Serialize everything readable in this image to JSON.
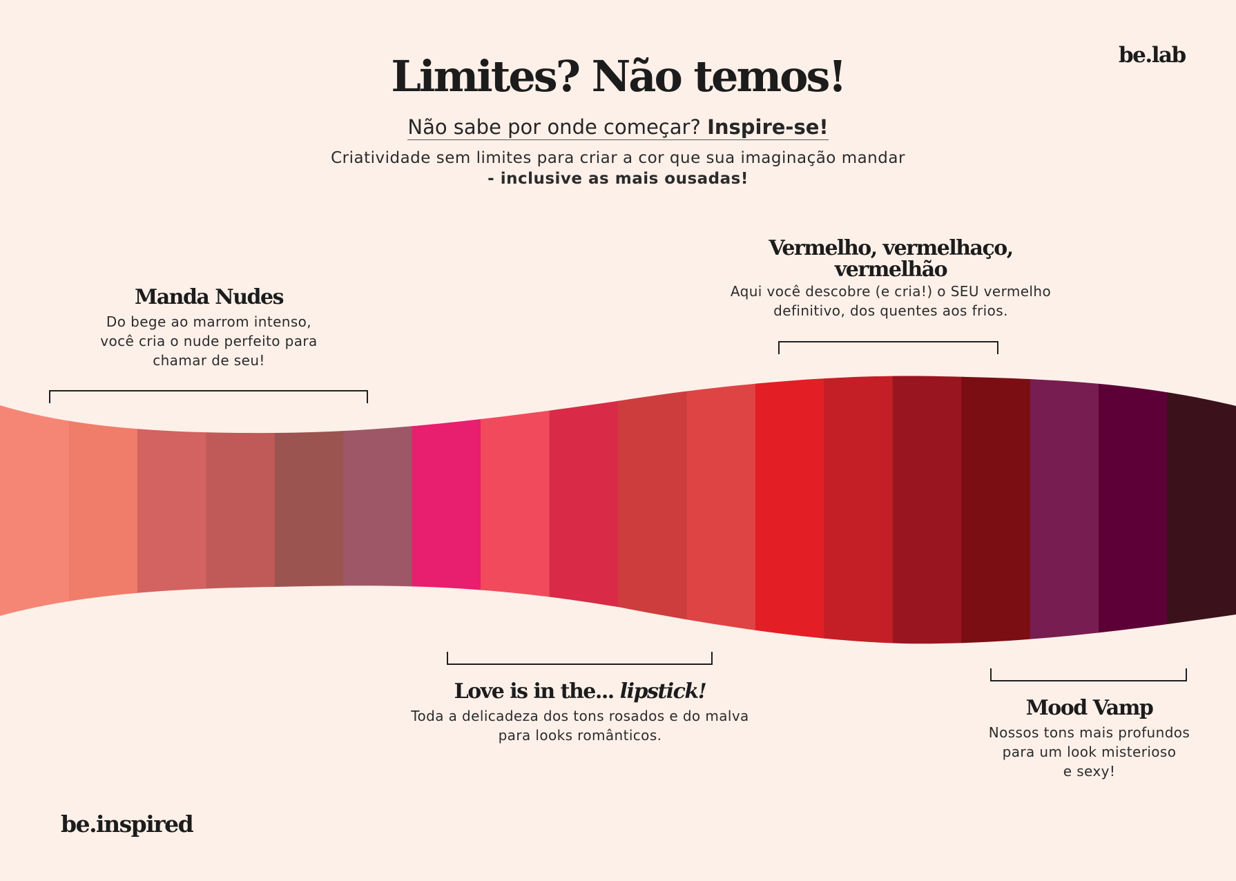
{
  "header": {
    "title": "Limites? Não temos!",
    "subtitle_plain": "Não sabe por onde começar?",
    "subtitle_bold": "Inspire-se!",
    "intro_line1": "Criatividade sem limites para criar a cor que sua imaginação mandar",
    "intro_line2": "- inclusive as mais ousadas!"
  },
  "brands": {
    "top_right": "be.lab",
    "bottom_left": "be.inspired"
  },
  "categories": [
    {
      "title": "Manda Nudes",
      "description_lines": [
        "Do bege ao marrom intenso,",
        "você cria o nude perfeito para",
        "chamar de seu!"
      ]
    },
    {
      "title_lines": [
        "Vermelho, vermelhaço,",
        "vermelhão"
      ],
      "description_lines": [
        "Aqui você descobre (e cria!) o SEU vermelho",
        "definitivo, dos quentes aos frios."
      ]
    },
    {
      "title_plain": "Love is in the...",
      "title_italic": "lipstick!",
      "description_lines": [
        "Toda a delicadeza dos tons rosados e do malva",
        "para looks românticos."
      ]
    },
    {
      "title": "Mood Vamp",
      "description_lines": [
        "Nossos tons mais profundos",
        "para um look misterioso",
        "e sexy!"
      ]
    }
  ],
  "palette": {
    "swatches": [
      "#f58676",
      "#f07c6a",
      "#d36360",
      "#bf5a58",
      "#9c5450",
      "#9e5766",
      "#e81e6e",
      "#f14a5c",
      "#d92a48",
      "#cd3d3e",
      "#de4444",
      "#e31e25",
      "#c41f27",
      "#991620",
      "#7a0e12",
      "#771d51",
      "#5d0037",
      "#3b121b"
    ],
    "bracket_color": "#1e1e1e"
  }
}
